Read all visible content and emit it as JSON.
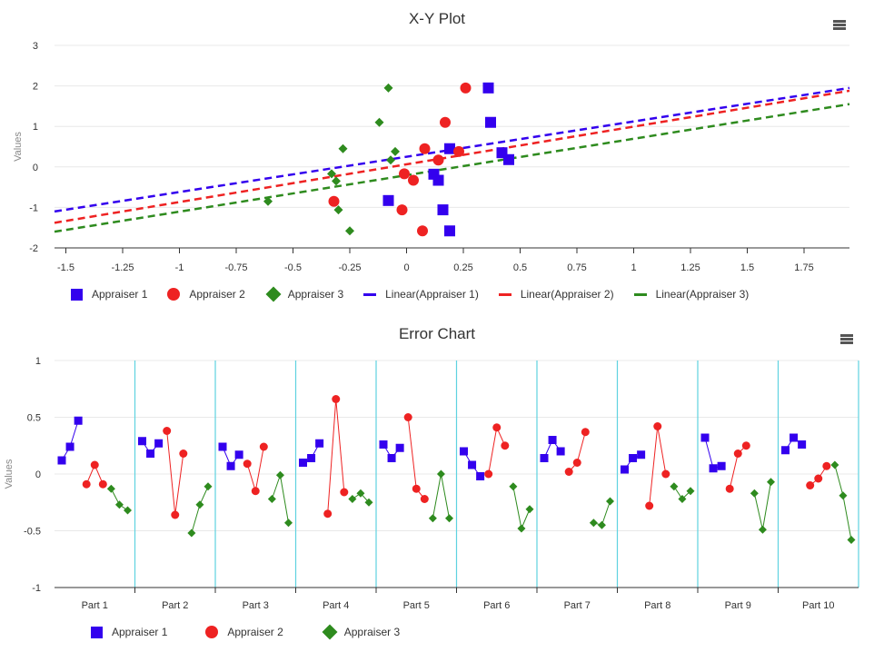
{
  "colors": {
    "appraiser1": "#3300ee",
    "appraiser2": "#ee2222",
    "appraiser3": "#2e8b1e",
    "grid": "#e8e8e8",
    "separator": "#5fd3e0"
  },
  "charts": [
    {
      "title": "X-Y Plot",
      "menu_icon": "hamburger-menu-icon",
      "chart_data": {
        "type": "scatter",
        "title": "X-Y Plot",
        "xlabel": "",
        "ylabel": "Values",
        "xlim": [
          -1.55,
          1.95
        ],
        "ylim": [
          -2,
          3
        ],
        "xticks": [
          "-1.5",
          "-1.25",
          "-1",
          "-0.75",
          "-0.5",
          "-0.25",
          "0",
          "0.25",
          "0.5",
          "0.75",
          "1",
          "1.25",
          "1.5",
          "1.75"
        ],
        "xtick_values": [
          -1.5,
          -1.25,
          -1,
          -0.75,
          -0.5,
          -0.25,
          0,
          0.25,
          0.5,
          0.75,
          1,
          1.25,
          1.5,
          1.75
        ],
        "yticks": [
          "-2",
          "-1",
          "0",
          "1",
          "2",
          "3"
        ],
        "ytick_values": [
          -2,
          -1,
          0,
          1,
          2,
          3
        ],
        "grid": true,
        "legend_position": "bottom",
        "series": [
          {
            "name": "Appraiser 1",
            "marker": "square",
            "points": [
              [
                0.36,
                1.95
              ],
              [
                0.37,
                1.1
              ],
              [
                0.19,
                0.45
              ],
              [
                0.42,
                0.35
              ],
              [
                0.45,
                0.18
              ],
              [
                0.12,
                -0.18
              ],
              [
                0.14,
                -0.33
              ],
              [
                -0.08,
                -0.83
              ],
              [
                0.16,
                -1.06
              ],
              [
                0.19,
                -1.58
              ]
            ]
          },
          {
            "name": "Appraiser 2",
            "marker": "circle",
            "points": [
              [
                0.26,
                1.95
              ],
              [
                0.17,
                1.1
              ],
              [
                0.08,
                0.45
              ],
              [
                0.23,
                0.38
              ],
              [
                0.14,
                0.17
              ],
              [
                -0.01,
                -0.17
              ],
              [
                0.03,
                -0.33
              ],
              [
                -0.32,
                -0.85
              ],
              [
                -0.02,
                -1.06
              ],
              [
                0.07,
                -1.58
              ]
            ]
          },
          {
            "name": "Appraiser 3",
            "marker": "diamond",
            "points": [
              [
                -0.08,
                1.95
              ],
              [
                -0.12,
                1.1
              ],
              [
                -0.28,
                0.45
              ],
              [
                -0.05,
                0.38
              ],
              [
                -0.07,
                0.17
              ],
              [
                -0.33,
                -0.17
              ],
              [
                -0.31,
                -0.35
              ],
              [
                -0.61,
                -0.85
              ],
              [
                -0.3,
                -1.06
              ],
              [
                -0.25,
                -1.58
              ]
            ]
          },
          {
            "name": "Linear(Appraiser 1)",
            "type": "line",
            "dashed": true,
            "x": [
              -1.55,
              1.95
            ],
            "y": [
              -1.1,
              1.95
            ]
          },
          {
            "name": "Linear(Appraiser 2)",
            "type": "line",
            "dashed": true,
            "x": [
              -1.55,
              1.95
            ],
            "y": [
              -1.38,
              1.88
            ]
          },
          {
            "name": "Linear(Appraiser 3)",
            "type": "line",
            "dashed": true,
            "x": [
              -1.55,
              1.95
            ],
            "y": [
              -1.6,
              1.55
            ]
          }
        ]
      },
      "legend": [
        {
          "label": "Appraiser 1",
          "symbol": "square",
          "color": "#3300ee"
        },
        {
          "label": "Appraiser 2",
          "symbol": "circle",
          "color": "#ee2222"
        },
        {
          "label": "Appraiser 3",
          "symbol": "diamond",
          "color": "#2e8b1e"
        },
        {
          "label": "Linear(Appraiser 1)",
          "symbol": "dash",
          "color": "#3300ee"
        },
        {
          "label": "Linear(Appraiser 2)",
          "symbol": "dash",
          "color": "#ee2222"
        },
        {
          "label": "Linear(Appraiser 3)",
          "symbol": "dash",
          "color": "#2e8b1e"
        }
      ]
    },
    {
      "title": "Error Chart",
      "menu_icon": "hamburger-menu-icon",
      "chart_data": {
        "type": "line",
        "title": "Error Chart",
        "xlabel": "",
        "ylabel": "Values",
        "ylim": [
          -1,
          1
        ],
        "yticks": [
          "-1",
          "-0.5",
          "0",
          "0.5",
          "1"
        ],
        "ytick_values": [
          -1,
          -0.5,
          0,
          0.5,
          1
        ],
        "categories": [
          "Part 1",
          "Part 2",
          "Part 3",
          "Part 4",
          "Part 5",
          "Part 6",
          "Part 7",
          "Part 8",
          "Part 9",
          "Part 10"
        ],
        "grid": true,
        "legend_position": "bottom",
        "series": [
          {
            "name": "Appraiser 1",
            "marker": "square",
            "values": [
              [
                0.12,
                0.24,
                0.47
              ],
              [
                0.29,
                0.18,
                0.27
              ],
              [
                0.24,
                0.07,
                0.17
              ],
              [
                0.1,
                0.14,
                0.27
              ],
              [
                0.26,
                0.14,
                0.23
              ],
              [
                0.2,
                0.08,
                -0.02
              ],
              [
                0.14,
                0.3,
                0.2
              ],
              [
                0.04,
                0.14,
                0.17
              ],
              [
                0.32,
                0.05,
                0.07
              ],
              [
                0.21,
                0.32,
                0.26
              ]
            ]
          },
          {
            "name": "Appraiser 2",
            "marker": "circle",
            "values": [
              [
                -0.09,
                0.08,
                -0.09
              ],
              [
                0.38,
                -0.36,
                0.18
              ],
              [
                0.09,
                -0.15,
                0.24
              ],
              [
                -0.35,
                0.66,
                -0.16
              ],
              [
                0.5,
                -0.13,
                -0.22
              ],
              [
                0.0,
                0.41,
                0.25
              ],
              [
                0.02,
                0.1,
                0.37
              ],
              [
                -0.28,
                0.42,
                0.0
              ],
              [
                -0.13,
                0.18,
                0.25
              ],
              [
                -0.1,
                -0.04,
                0.07
              ]
            ]
          },
          {
            "name": "Appraiser 3",
            "marker": "diamond",
            "values": [
              [
                -0.13,
                -0.27,
                -0.32
              ],
              [
                -0.52,
                -0.27,
                -0.11
              ],
              [
                -0.22,
                -0.01,
                -0.43
              ],
              [
                -0.22,
                -0.17,
                -0.25
              ],
              [
                -0.39,
                0.0,
                -0.39
              ],
              [
                -0.11,
                -0.48,
                -0.31
              ],
              [
                -0.43,
                -0.45,
                -0.24
              ],
              [
                -0.11,
                -0.22,
                -0.15
              ],
              [
                -0.17,
                -0.49,
                -0.07
              ],
              [
                0.08,
                -0.19,
                -0.58
              ]
            ]
          }
        ]
      },
      "legend": [
        {
          "label": "Appraiser 1",
          "symbol": "square",
          "color": "#3300ee"
        },
        {
          "label": "Appraiser 2",
          "symbol": "circle",
          "color": "#ee2222"
        },
        {
          "label": "Appraiser 3",
          "symbol": "diamond",
          "color": "#2e8b1e"
        }
      ]
    }
  ]
}
